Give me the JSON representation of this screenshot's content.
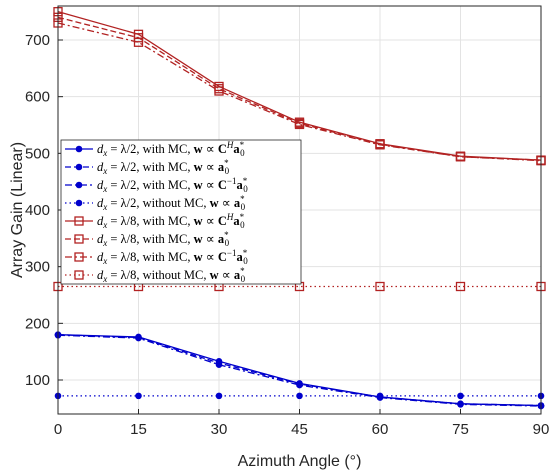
{
  "chart_data": {
    "type": "line",
    "xlabel": "Azimuth Angle (°)",
    "ylabel": "Array Gain (Linear)",
    "xlim": [
      0,
      90
    ],
    "ylim": [
      40,
      760
    ],
    "xticks": [
      0,
      15,
      30,
      45,
      60,
      75,
      90
    ],
    "yticks": [
      100,
      200,
      300,
      400,
      500,
      600,
      700
    ],
    "grid": true,
    "legend_position": "left-center",
    "x": [
      0,
      15,
      30,
      45,
      60,
      75,
      90
    ],
    "series": [
      {
        "name": "d_x = λ/2, with MC, w ∝ C^H a0*",
        "color": "#0000cc",
        "line": "solid",
        "marker": "dot",
        "values": [
          180,
          176,
          133,
          94,
          70,
          58,
          55
        ]
      },
      {
        "name": "d_x = λ/2, with MC, w ∝ a0*",
        "color": "#0000cc",
        "line": "dashed",
        "marker": "dot",
        "values": [
          180,
          175,
          130,
          93,
          70,
          58,
          55
        ]
      },
      {
        "name": "d_x = λ/2, with MC, w ∝ C^-1 a0*",
        "color": "#0000cc",
        "line": "dashdot",
        "marker": "dot",
        "values": [
          179,
          174,
          127,
          91,
          69,
          57,
          54
        ]
      },
      {
        "name": "d_x = λ/2, without MC, w ∝ a0*",
        "color": "#0000cc",
        "line": "dotted",
        "marker": "dot",
        "values": [
          72,
          72,
          72,
          72,
          72,
          72,
          72
        ]
      },
      {
        "name": "d_x = λ/8, with MC, w ∝ C^H a0*",
        "color": "#b22222",
        "line": "solid",
        "marker": "square",
        "values": [
          750,
          710,
          618,
          555,
          517,
          495,
          488
        ]
      },
      {
        "name": "d_x = λ/8, with MC, w ∝ a0*",
        "color": "#b22222",
        "line": "dashed",
        "marker": "square",
        "values": [
          740,
          704,
          614,
          553,
          516,
          494,
          488
        ]
      },
      {
        "name": "d_x = λ/8, with MC, w ∝ C^-1 a0*",
        "color": "#b22222",
        "line": "dashdot",
        "marker": "square",
        "values": [
          730,
          696,
          610,
          551,
          515,
          494,
          487
        ]
      },
      {
        "name": "d_x = λ/8, without MC, w ∝ a0*",
        "color": "#b22222",
        "line": "dotted",
        "marker": "square",
        "values": [
          265,
          265,
          265,
          265,
          265,
          265,
          265
        ]
      }
    ],
    "legend_labels": [
      {
        "d": "λ/2",
        "mc": "with MC",
        "w": "C",
        "sup": "H"
      },
      {
        "d": "λ/2",
        "mc": "with MC",
        "w": "",
        "sup": ""
      },
      {
        "d": "λ/2",
        "mc": "with MC",
        "w": "C",
        "sup": "−1"
      },
      {
        "d": "λ/2",
        "mc": "without MC",
        "w": "",
        "sup": ""
      },
      {
        "d": "λ/8",
        "mc": "with MC",
        "w": "C",
        "sup": "H"
      },
      {
        "d": "λ/8",
        "mc": "with MC",
        "w": "",
        "sup": ""
      },
      {
        "d": "λ/8",
        "mc": "with MC",
        "w": "C",
        "sup": "−1"
      },
      {
        "d": "λ/8",
        "mc": "without MC",
        "w": "",
        "sup": ""
      }
    ]
  }
}
